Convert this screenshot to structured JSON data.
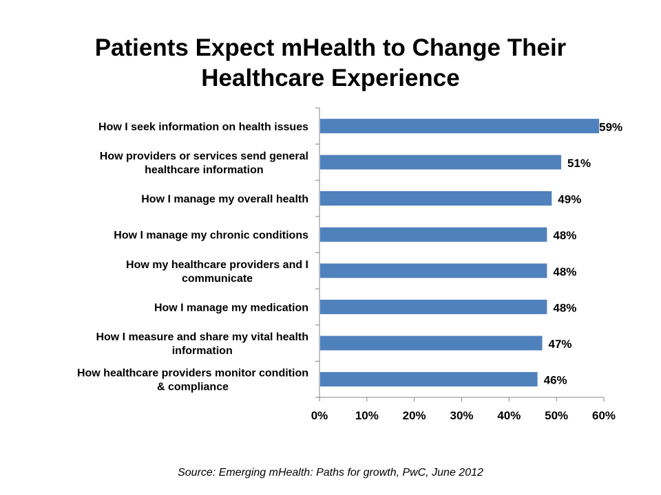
{
  "chart_data": {
    "type": "bar",
    "orientation": "horizontal",
    "title": "Patients Expect mHealth to Change Their Healthcare Experience",
    "title_lines": [
      "Patients Expect mHealth to Change Their",
      "Healthcare Experience"
    ],
    "categories": [
      [
        "How I seek information on health issues"
      ],
      [
        "How providers or services send general",
        "healthcare information"
      ],
      [
        "How I manage my overall health"
      ],
      [
        "How I manage my chronic conditions"
      ],
      [
        "How my healthcare providers and I",
        "communicate"
      ],
      [
        "How I manage my medication"
      ],
      [
        "How I measure and share my vital health",
        "information"
      ],
      [
        "How healthcare providers monitor condition",
        "& compliance"
      ]
    ],
    "values": [
      59,
      51,
      49,
      48,
      48,
      48,
      47,
      46
    ],
    "data_labels": [
      "59%",
      "51%",
      "49%",
      "48%",
      "48%",
      "48%",
      "47%",
      "46%"
    ],
    "xlabel": "",
    "ylabel": "",
    "xlim": [
      0,
      60
    ],
    "x_ticks": [
      0,
      10,
      20,
      30,
      40,
      50,
      60
    ],
    "x_tick_labels": [
      "0%",
      "10%",
      "20%",
      "30%",
      "40%",
      "50%",
      "60%"
    ],
    "grid": false,
    "legend": "none",
    "bar_color": "#4F81BD",
    "axis_color": "#868686"
  },
  "source": "Source: Emerging mHealth: Paths for growth,  PwC, June 2012"
}
